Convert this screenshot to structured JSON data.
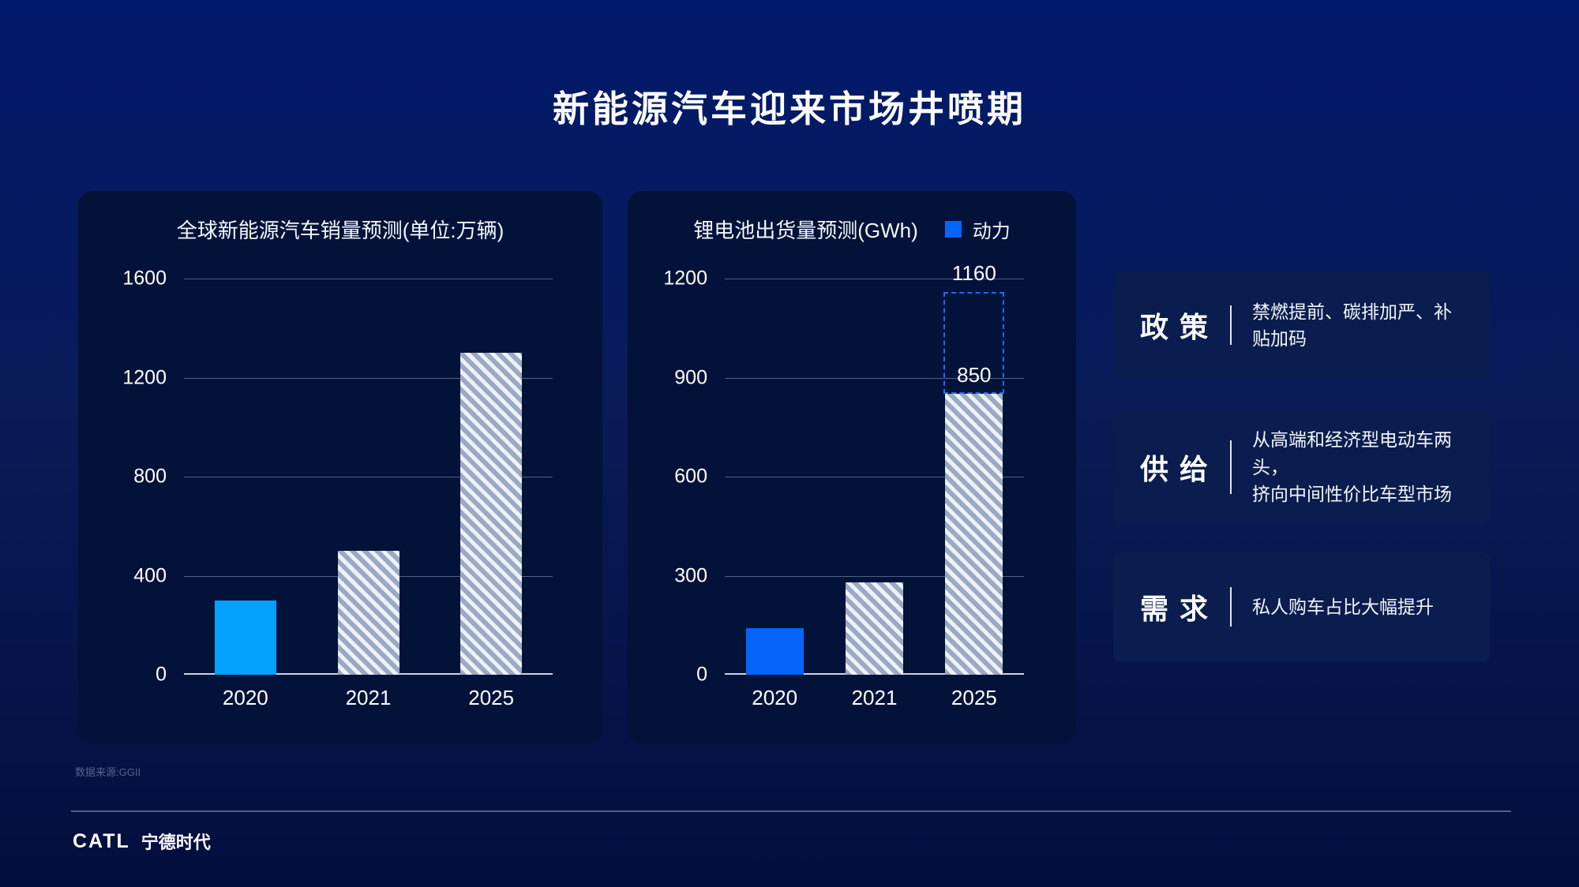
{
  "slide": {
    "title": "新能源汽车迎来市场井喷期"
  },
  "chart_data": [
    {
      "type": "bar",
      "title": "全球新能源汽车销量预测(单位:万辆)",
      "categories": [
        "2020",
        "2021",
        "2025"
      ],
      "values": [
        300,
        500,
        1300
      ],
      "ylim": [
        0,
        1600
      ],
      "yticks": [
        0,
        400,
        800,
        1200,
        1600
      ],
      "grid": true,
      "bar_styles": [
        "solid",
        "hatched",
        "hatched"
      ],
      "solid_color": "#03A0FC"
    },
    {
      "type": "bar",
      "title": "锂电池出货量预测(GWh)",
      "categories": [
        "2020",
        "2021",
        "2025"
      ],
      "values": [
        140,
        280,
        850
      ],
      "ylim": [
        0,
        1200
      ],
      "yticks": [
        0,
        300,
        600,
        900,
        1200
      ],
      "grid": true,
      "bar_styles": [
        "solid",
        "hatched",
        "hatched"
      ],
      "solid_color": "#0565FB",
      "legend": [
        {
          "label": "动力",
          "color": "#0565FB"
        }
      ],
      "legend_position": "top-right",
      "projection": {
        "category": "2025",
        "from": 850,
        "to": 1160,
        "color": "#1E6CFF"
      },
      "annotations": [
        {
          "category": "2025",
          "value": 850,
          "text": "850"
        },
        {
          "category": "2025",
          "value": 1160,
          "text": "1160"
        }
      ]
    }
  ],
  "colors": {
    "page_top": "#01196B",
    "page_bottom": "#020E3D",
    "panel_bg": "#021239",
    "insight_bg": "#0A1D4E",
    "solid_bar_left": "#03A0FC",
    "solid_bar_right": "#0565FB",
    "hatch_base": "#9AA9C4",
    "hatch_stripe": "#EEF1F7",
    "projection_dash": "#1E6CFF"
  },
  "insights": [
    {
      "title": "政 策",
      "body": "禁燃提前、碳排加严、补贴加码"
    },
    {
      "title": "供 给",
      "body": "从高端和经济型电动车两头，\n挤向中间性价比车型市场"
    },
    {
      "title": "需 求",
      "body": "私人购车占比大幅提升"
    }
  ],
  "footer": {
    "source": "数据来源:GGII",
    "logo_en": "CATL",
    "logo_cn": "宁德时代"
  }
}
